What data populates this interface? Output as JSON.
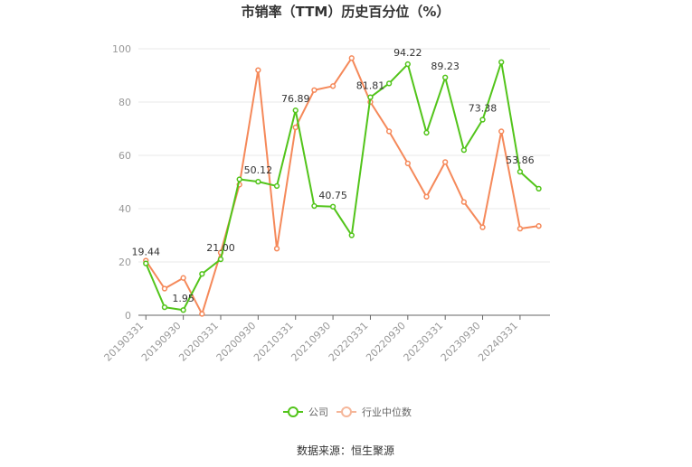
{
  "chart_data": {
    "type": "line",
    "title": "市销率（TTM）历史百分位（%）",
    "ylim": [
      0,
      100
    ],
    "yticks": [
      0,
      20,
      40,
      60,
      80,
      100
    ],
    "x": [
      "20190331",
      "20190630",
      "20190930",
      "20191231",
      "20200331",
      "20200630",
      "20200930",
      "20201231",
      "20210331",
      "20210630",
      "20210930",
      "20211231",
      "20220331",
      "20220630",
      "20220930",
      "20221231",
      "20230331",
      "20230630",
      "20230930",
      "20231231",
      "20240331",
      "20240630"
    ],
    "xtick_labels": [
      "20190331",
      "20190930",
      "20200331",
      "20200930",
      "20210331",
      "20210930",
      "20220331",
      "20220930",
      "20230331",
      "20230930",
      "20240331"
    ],
    "series": [
      {
        "name": "公司",
        "color": "#52c41a",
        "values": [
          19.44,
          3.0,
          1.95,
          15.5,
          21.0,
          51.0,
          50.12,
          48.5,
          76.89,
          41.0,
          40.75,
          30.0,
          81.81,
          87.0,
          94.22,
          68.5,
          89.23,
          62.0,
          73.38,
          95.0,
          53.86,
          47.5
        ],
        "labels": [
          {
            "index": 0,
            "text": "19.44"
          },
          {
            "index": 2,
            "text": "1.95"
          },
          {
            "index": 4,
            "text": "21.00"
          },
          {
            "index": 6,
            "text": "50.12"
          },
          {
            "index": 8,
            "text": "76.89"
          },
          {
            "index": 10,
            "text": "40.75"
          },
          {
            "index": 12,
            "text": "81.81"
          },
          {
            "index": 14,
            "text": "94.22"
          },
          {
            "index": 16,
            "text": "89.23"
          },
          {
            "index": 18,
            "text": "73.38"
          },
          {
            "index": 20,
            "text": "53.86"
          }
        ]
      },
      {
        "name": "行业中位数",
        "color": "#f5895a",
        "values": [
          20.5,
          10.0,
          14.0,
          0.5,
          23.5,
          49.0,
          92.0,
          25.0,
          70.5,
          84.5,
          86.0,
          96.5,
          80.0,
          69.0,
          57.0,
          44.5,
          57.5,
          42.5,
          33.0,
          69.0,
          32.5,
          33.5
        ],
        "labels": []
      }
    ],
    "legend_position": "bottom",
    "grid": "horizontal"
  },
  "legend": {
    "items": [
      {
        "label": "公司",
        "color": "#52c41a"
      },
      {
        "label": "行业中位数",
        "color": "#f5b699"
      }
    ]
  },
  "source": "数据来源：恒生聚源"
}
